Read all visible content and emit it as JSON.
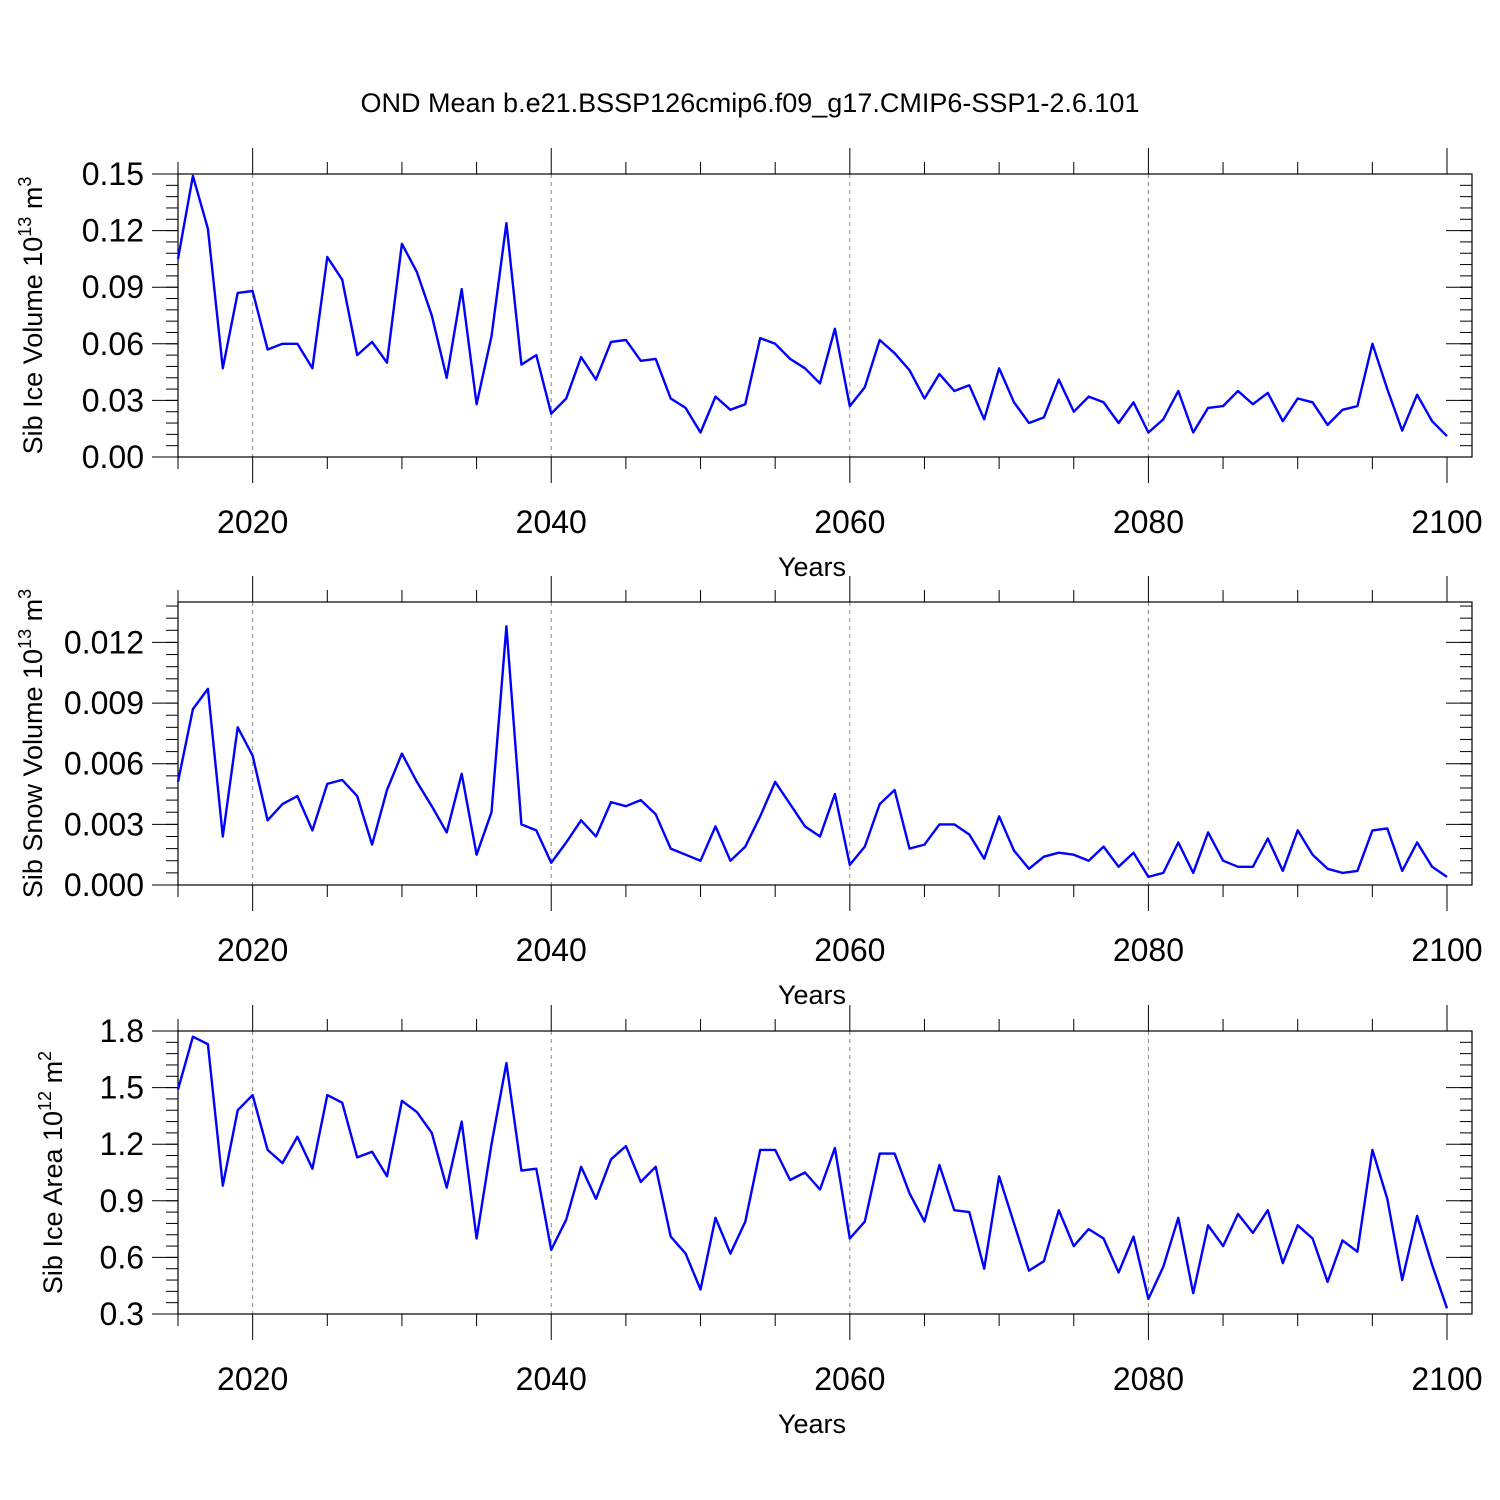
{
  "title": "OND Mean b.e21.BSSP126cmip6.f09_g17.CMIP6-SSP1-2.6.101",
  "colors": {
    "line": "#0000ff",
    "axis": "#000000",
    "grid": "#888888"
  },
  "chart_data": [
    {
      "type": "line",
      "ylabel": {
        "text": "Sib Ice Volume 10",
        "exp": "13",
        "unit": " m",
        "unit_exp": "3"
      },
      "xlabel": "Years",
      "xlim": [
        2015,
        2100
      ],
      "ylim": [
        0.0,
        0.15
      ],
      "yticks": [
        "0.00",
        "0.03",
        "0.06",
        "0.09",
        "0.12",
        "0.15"
      ],
      "ytick_values": [
        0.0,
        0.03,
        0.06,
        0.09,
        0.12,
        0.15
      ],
      "xticks": [
        "2020",
        "2040",
        "2060",
        "2080",
        "2100"
      ],
      "xtick_values": [
        2020,
        2040,
        2060,
        2080,
        2100
      ],
      "grid_years": [
        2020,
        2040,
        2060,
        2080
      ],
      "x_start": 2015,
      "values": [
        0.105,
        0.149,
        0.121,
        0.047,
        0.087,
        0.088,
        0.057,
        0.06,
        0.06,
        0.047,
        0.106,
        0.094,
        0.054,
        0.061,
        0.05,
        0.113,
        0.098,
        0.075,
        0.042,
        0.089,
        0.028,
        0.064,
        0.124,
        0.049,
        0.054,
        0.023,
        0.031,
        0.053,
        0.041,
        0.061,
        0.062,
        0.051,
        0.052,
        0.031,
        0.026,
        0.013,
        0.032,
        0.025,
        0.028,
        0.063,
        0.06,
        0.052,
        0.047,
        0.039,
        0.068,
        0.027,
        0.037,
        0.062,
        0.055,
        0.046,
        0.031,
        0.044,
        0.035,
        0.038,
        0.02,
        0.047,
        0.029,
        0.018,
        0.021,
        0.041,
        0.024,
        0.032,
        0.029,
        0.018,
        0.029,
        0.013,
        0.02,
        0.035,
        0.013,
        0.026,
        0.027,
        0.035,
        0.028,
        0.034,
        0.019,
        0.031,
        0.029,
        0.017,
        0.025,
        0.027,
        0.06,
        0.036,
        0.014,
        0.033,
        0.019,
        0.011
      ]
    },
    {
      "type": "line",
      "ylabel": {
        "text": "Sib Snow Volume 10",
        "exp": "13",
        "unit": " m",
        "unit_exp": "3"
      },
      "xlabel": "Years",
      "xlim": [
        2015,
        2100
      ],
      "ylim": [
        0.0,
        0.014
      ],
      "yticks": [
        "0.000",
        "0.003",
        "0.006",
        "0.009",
        "0.012"
      ],
      "ytick_values": [
        0.0,
        0.003,
        0.006,
        0.009,
        0.012
      ],
      "xticks": [
        "2020",
        "2040",
        "2060",
        "2080",
        "2100"
      ],
      "xtick_values": [
        2020,
        2040,
        2060,
        2080,
        2100
      ],
      "grid_years": [
        2020,
        2040,
        2060,
        2080
      ],
      "x_start": 2015,
      "values": [
        0.0051,
        0.0087,
        0.0097,
        0.0024,
        0.0078,
        0.0064,
        0.0032,
        0.004,
        0.0044,
        0.0027,
        0.005,
        0.0052,
        0.0044,
        0.002,
        0.0047,
        0.0065,
        0.0051,
        0.0039,
        0.0026,
        0.0055,
        0.0015,
        0.0036,
        0.0128,
        0.003,
        0.0027,
        0.0011,
        0.0021,
        0.0032,
        0.0024,
        0.0041,
        0.0039,
        0.0042,
        0.0035,
        0.0018,
        0.0015,
        0.0012,
        0.0029,
        0.0012,
        0.0019,
        0.0034,
        0.0051,
        0.004,
        0.0029,
        0.0024,
        0.0045,
        0.001,
        0.0019,
        0.004,
        0.0047,
        0.0018,
        0.002,
        0.003,
        0.003,
        0.0025,
        0.0013,
        0.0034,
        0.0017,
        0.0008,
        0.0014,
        0.0016,
        0.0015,
        0.0012,
        0.0019,
        0.0009,
        0.0016,
        0.0004,
        0.0006,
        0.0021,
        0.0006,
        0.0026,
        0.0012,
        0.0009,
        0.0009,
        0.0023,
        0.0007,
        0.0027,
        0.0015,
        0.0008,
        0.0006,
        0.0007,
        0.0027,
        0.0028,
        0.0007,
        0.0021,
        0.0009,
        0.0004
      ]
    },
    {
      "type": "line",
      "ylabel": {
        "text": "Sib Ice Area 10",
        "exp": "12",
        "unit": " m",
        "unit_exp": "2"
      },
      "xlabel": "Years",
      "xlim": [
        2015,
        2100
      ],
      "ylim": [
        0.3,
        1.8
      ],
      "yticks": [
        "0.3",
        "0.6",
        "0.9",
        "1.2",
        "1.5",
        "1.8"
      ],
      "ytick_values": [
        0.3,
        0.6,
        0.9,
        1.2,
        1.5,
        1.8
      ],
      "xticks": [
        "2020",
        "2040",
        "2060",
        "2080",
        "2100"
      ],
      "xtick_values": [
        2020,
        2040,
        2060,
        2080,
        2100
      ],
      "grid_years": [
        2020,
        2040,
        2060,
        2080
      ],
      "x_start": 2015,
      "values": [
        1.49,
        1.77,
        1.73,
        0.98,
        1.38,
        1.46,
        1.17,
        1.1,
        1.24,
        1.07,
        1.46,
        1.42,
        1.13,
        1.16,
        1.03,
        1.43,
        1.37,
        1.26,
        0.97,
        1.32,
        0.7,
        1.2,
        1.63,
        1.06,
        1.07,
        0.64,
        0.8,
        1.08,
        0.91,
        1.12,
        1.19,
        1.0,
        1.08,
        0.71,
        0.62,
        0.43,
        0.81,
        0.62,
        0.79,
        1.17,
        1.17,
        1.01,
        1.05,
        0.96,
        1.18,
        0.7,
        0.79,
        1.15,
        1.15,
        0.94,
        0.79,
        1.09,
        0.85,
        0.84,
        0.54,
        1.03,
        0.78,
        0.53,
        0.58,
        0.85,
        0.66,
        0.75,
        0.7,
        0.52,
        0.71,
        0.38,
        0.55,
        0.81,
        0.41,
        0.77,
        0.66,
        0.83,
        0.73,
        0.85,
        0.57,
        0.77,
        0.7,
        0.47,
        0.69,
        0.63,
        1.17,
        0.91,
        0.48,
        0.82,
        0.56,
        0.33
      ]
    }
  ]
}
